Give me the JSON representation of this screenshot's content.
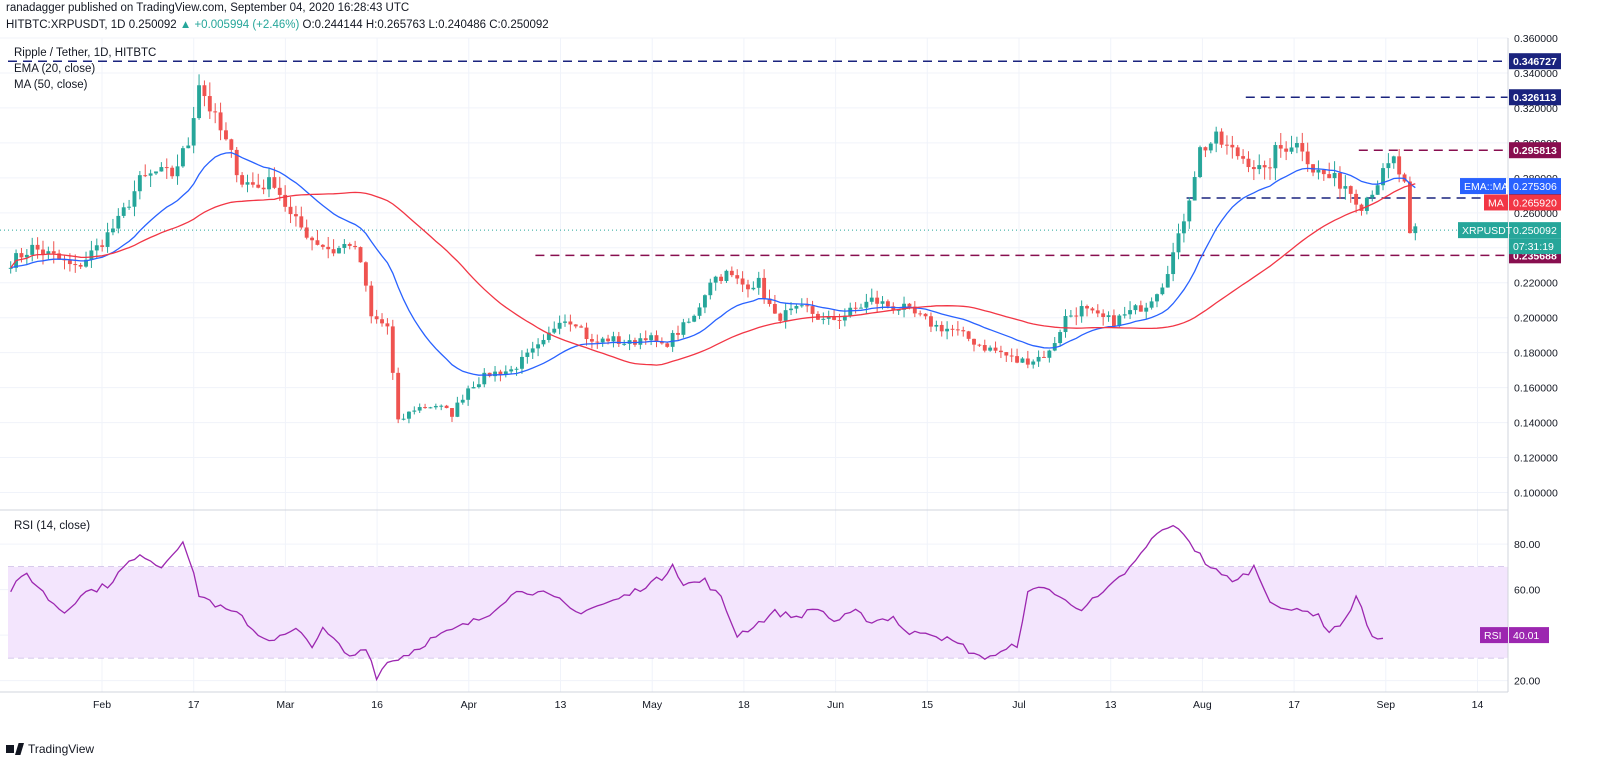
{
  "header": {
    "line1": "ranadagger published on TradingView.com, September 04, 2020 16:28:43 UTC",
    "symbol": "HITBTC:XRPUSDT, 1D",
    "last": "0.250092",
    "change": "▲ +0.005994 (+2.46%)",
    "ohlc": "O:0.244144 H:0.265763 L:0.240486 C:0.250092"
  },
  "legend": {
    "title": "Ripple / Tether, 1D, HITBTC",
    "ema": "EMA (20, close)",
    "ma": "MA (50, close)",
    "rsi": "RSI (14, close)"
  },
  "footer": {
    "brand": "TradingView"
  },
  "colors": {
    "up": "#26a69a",
    "down": "#ef5350",
    "ema": "#2962ff",
    "ma": "#f23645",
    "rsi": "#9c27b0",
    "rsi_band": "#f3e5fd",
    "blue_level": "#1a237e",
    "purple_level": "#880e4f"
  },
  "chart_data": [
    {
      "type": "candlestick",
      "title": "Ripple / Tether, 1D, HITBTC",
      "ylim": [
        0.09,
        0.36
      ],
      "y_ticks": [
        "0.360000",
        "0.340000",
        "0.320000",
        "0.300000",
        "0.280000",
        "0.260000",
        "0.240000",
        "0.220000",
        "0.200000",
        "0.180000",
        "0.160000",
        "0.140000",
        "0.120000",
        "0.100000"
      ],
      "x_ticks": [
        "Feb",
        "17",
        "Mar",
        "16",
        "Apr",
        "13",
        "May",
        "18",
        "Jun",
        "15",
        "Jul",
        "13",
        "Aug",
        "17",
        "Sep",
        "14"
      ],
      "anchors": [
        [
          0,
          0.232
        ],
        [
          4,
          0.24
        ],
        [
          8,
          0.235
        ],
        [
          12,
          0.228
        ],
        [
          16,
          0.24
        ],
        [
          20,
          0.255
        ],
        [
          24,
          0.278
        ],
        [
          27,
          0.283
        ],
        [
          30,
          0.282
        ],
        [
          33,
          0.3
        ],
        [
          35,
          0.335
        ],
        [
          37,
          0.32
        ],
        [
          40,
          0.3
        ],
        [
          43,
          0.278
        ],
        [
          46,
          0.275
        ],
        [
          49,
          0.278
        ],
        [
          52,
          0.258
        ],
        [
          56,
          0.245
        ],
        [
          60,
          0.238
        ],
        [
          63,
          0.243
        ],
        [
          65,
          0.232
        ],
        [
          67,
          0.2
        ],
        [
          70,
          0.195
        ],
        [
          72,
          0.14
        ],
        [
          75,
          0.148
        ],
        [
          79,
          0.15
        ],
        [
          82,
          0.145
        ],
        [
          85,
          0.16
        ],
        [
          89,
          0.168
        ],
        [
          93,
          0.17
        ],
        [
          96,
          0.178
        ],
        [
          99,
          0.185
        ],
        [
          102,
          0.2
        ],
        [
          105,
          0.198
        ],
        [
          108,
          0.185
        ],
        [
          111,
          0.188
        ],
        [
          115,
          0.185
        ],
        [
          118,
          0.19
        ],
        [
          121,
          0.183
        ],
        [
          124,
          0.192
        ],
        [
          127,
          0.2
        ],
        [
          130,
          0.222
        ],
        [
          133,
          0.225
        ],
        [
          136,
          0.219
        ],
        [
          139,
          0.22
        ],
        [
          142,
          0.2
        ],
        [
          145,
          0.203
        ],
        [
          148,
          0.205
        ],
        [
          151,
          0.198
        ],
        [
          154,
          0.2
        ],
        [
          157,
          0.205
        ],
        [
          160,
          0.21
        ],
        [
          163,
          0.207
        ],
        [
          166,
          0.205
        ],
        [
          169,
          0.2
        ],
        [
          172,
          0.195
        ],
        [
          175,
          0.193
        ],
        [
          178,
          0.188
        ],
        [
          181,
          0.183
        ],
        [
          184,
          0.18
        ],
        [
          187,
          0.175
        ],
        [
          190,
          0.176
        ],
        [
          193,
          0.18
        ],
        [
          196,
          0.2
        ],
        [
          199,
          0.205
        ],
        [
          202,
          0.2
        ],
        [
          205,
          0.198
        ],
        [
          208,
          0.203
        ],
        [
          211,
          0.208
        ],
        [
          214,
          0.22
        ],
        [
          217,
          0.245
        ],
        [
          219,
          0.27
        ],
        [
          221,
          0.296
        ],
        [
          224,
          0.302
        ],
        [
          227,
          0.295
        ],
        [
          230,
          0.29
        ],
        [
          233,
          0.282
        ],
        [
          235,
          0.295
        ],
        [
          238,
          0.3
        ],
        [
          240,
          0.298
        ],
        [
          242,
          0.285
        ],
        [
          245,
          0.28
        ],
        [
          248,
          0.276
        ],
        [
          251,
          0.265
        ],
        [
          254,
          0.278
        ],
        [
          257,
          0.29
        ],
        [
          259,
          0.275
        ],
        [
          260,
          0.245
        ],
        [
          261,
          0.25
        ]
      ],
      "last_day": 261,
      "ema_label": "EMA::MA",
      "series": [
        {
          "name": "EMA (20, close)",
          "value": 0.275306,
          "label": "0.275306",
          "color": "#2962ff"
        },
        {
          "name": "MA (50, close)",
          "tag": "MA",
          "value": 0.26592,
          "label": "0.265920",
          "color": "#f23645"
        },
        {
          "name": "XRPUSDT",
          "tag": "XRPUSDT",
          "value": 0.250092,
          "label": "0.250092",
          "countdown": "07:31:19",
          "color": "#26a69a"
        }
      ],
      "levels": [
        {
          "value": 0.346727,
          "label": "0.346727",
          "color": "#1a237e",
          "from": 0
        },
        {
          "value": 0.326113,
          "label": "0.326113",
          "color": "#1a237e",
          "from": 230
        },
        {
          "value": 0.295813,
          "label": "0.295813",
          "color": "#880e4f",
          "from": 251
        },
        {
          "value": 0.268478,
          "label": "0.268478",
          "color": "#1a237e",
          "from": 219
        },
        {
          "value": 0.235688,
          "label": "0.235688",
          "color": "#880e4f",
          "from": 98
        }
      ]
    },
    {
      "type": "line",
      "title": "RSI (14, close)",
      "ylim": [
        15,
        95
      ],
      "y_ticks": [
        "80.00",
        "60.00",
        "40.00",
        "20.00"
      ],
      "band": [
        30,
        70
      ],
      "last": "40.01",
      "tag": "RSI",
      "anchors": [
        [
          0,
          60
        ],
        [
          3,
          67
        ],
        [
          7,
          56
        ],
        [
          10,
          50
        ],
        [
          13,
          58
        ],
        [
          18,
          62
        ],
        [
          22,
          72
        ],
        [
          25,
          75
        ],
        [
          28,
          70
        ],
        [
          32,
          82
        ],
        [
          35,
          58
        ],
        [
          39,
          52
        ],
        [
          43,
          48
        ],
        [
          46,
          40
        ],
        [
          49,
          38
        ],
        [
          53,
          42
        ],
        [
          56,
          36
        ],
        [
          58,
          42
        ],
        [
          60,
          38
        ],
        [
          63,
          30
        ],
        [
          66,
          35
        ],
        [
          68,
          22
        ],
        [
          70,
          28
        ],
        [
          74,
          32
        ],
        [
          78,
          38
        ],
        [
          82,
          42
        ],
        [
          85,
          45
        ],
        [
          88,
          48
        ],
        [
          92,
          56
        ],
        [
          95,
          60
        ],
        [
          99,
          58
        ],
        [
          102,
          55
        ],
        [
          105,
          50
        ],
        [
          108,
          52
        ],
        [
          112,
          55
        ],
        [
          115,
          58
        ],
        [
          118,
          62
        ],
        [
          121,
          65
        ],
        [
          123,
          72
        ],
        [
          125,
          62
        ],
        [
          129,
          64
        ],
        [
          132,
          56
        ],
        [
          135,
          40
        ],
        [
          138,
          44
        ],
        [
          142,
          50
        ],
        [
          146,
          48
        ],
        [
          150,
          52
        ],
        [
          153,
          46
        ],
        [
          157,
          50
        ],
        [
          160,
          46
        ],
        [
          164,
          48
        ],
        [
          167,
          40
        ],
        [
          170,
          42
        ],
        [
          174,
          38
        ],
        [
          177,
          35
        ],
        [
          180,
          30
        ],
        [
          184,
          32
        ],
        [
          187,
          36
        ],
        [
          189,
          58
        ],
        [
          192,
          62
        ],
        [
          195,
          56
        ],
        [
          199,
          52
        ],
        [
          203,
          58
        ],
        [
          206,
          65
        ],
        [
          209,
          72
        ],
        [
          212,
          82
        ],
        [
          215,
          88
        ],
        [
          218,
          85
        ],
        [
          220,
          78
        ],
        [
          222,
          72
        ],
        [
          225,
          66
        ],
        [
          228,
          64
        ],
        [
          231,
          70
        ],
        [
          234,
          56
        ],
        [
          237,
          50
        ],
        [
          240,
          52
        ],
        [
          243,
          48
        ],
        [
          245,
          42
        ],
        [
          248,
          46
        ],
        [
          250,
          58
        ],
        [
          253,
          38
        ],
        [
          255,
          40
        ]
      ],
      "last_day": 255
    }
  ]
}
